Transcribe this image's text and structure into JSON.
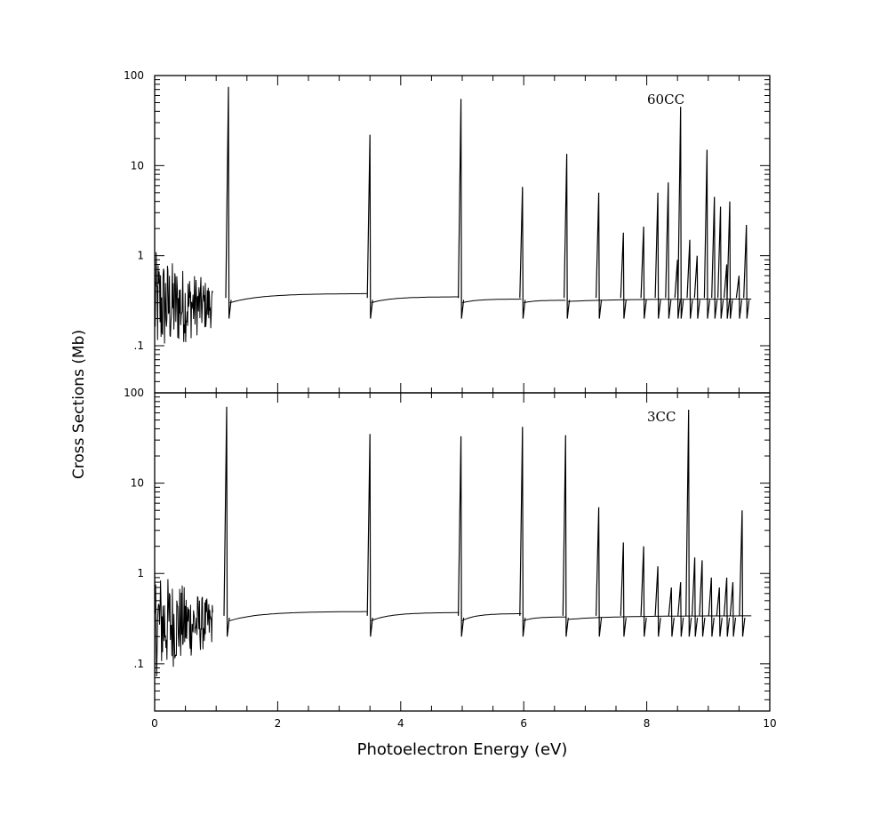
{
  "chart_data": {
    "type": "line",
    "xlabel": "Photoelectron Energy (eV)",
    "ylabel": "Cross Sections (Mb)",
    "xlim": [
      0,
      10
    ],
    "x_ticks": [
      "0",
      "2",
      "4",
      "6",
      "8",
      "10"
    ],
    "yscale": "log",
    "ylim": [
      0.03,
      100
    ],
    "y_ticks": [
      {
        "value": 100,
        "label": "100"
      },
      {
        "value": 10,
        "label": "10"
      },
      {
        "value": 1,
        "label": "1"
      },
      {
        "value": 0.1,
        "label": ".1"
      }
    ],
    "grid": false,
    "panels": [
      {
        "annotation": "60CC",
        "background": {
          "low_energy_region": {
            "x": [
              0,
              0.95
            ],
            "level": 0.28
          },
          "plateaus": [
            {
              "x": [
                1.22,
                3.45
              ],
              "start": 0.3,
              "end": 0.38
            },
            {
              "x": [
                3.52,
                4.95
              ],
              "start": 0.3,
              "end": 0.35
            },
            {
              "x": [
                5.0,
                5.96
              ],
              "start": 0.3,
              "end": 0.33
            },
            {
              "x": [
                6.0,
                6.68
              ],
              "start": 0.3,
              "end": 0.32
            },
            {
              "x": [
                6.72,
                9.7
              ],
              "start": 0.31,
              "end": 0.33
            }
          ]
        },
        "peaks": [
          {
            "x": 1.2,
            "y": 75
          },
          {
            "x": 3.5,
            "y": 22
          },
          {
            "x": 4.98,
            "y": 55
          },
          {
            "x": 5.98,
            "y": 5.8
          },
          {
            "x": 6.7,
            "y": 13.5
          },
          {
            "x": 7.22,
            "y": 5.0
          },
          {
            "x": 7.62,
            "y": 1.8
          },
          {
            "x": 7.95,
            "y": 2.1
          },
          {
            "x": 8.18,
            "y": 5.0
          },
          {
            "x": 8.35,
            "y": 6.5
          },
          {
            "x": 8.5,
            "y": 0.9
          },
          {
            "x": 8.55,
            "y": 45
          },
          {
            "x": 8.7,
            "y": 1.5
          },
          {
            "x": 8.82,
            "y": 1.0
          },
          {
            "x": 8.98,
            "y": 15
          },
          {
            "x": 9.1,
            "y": 4.5
          },
          {
            "x": 9.2,
            "y": 3.5
          },
          {
            "x": 9.3,
            "y": 0.8
          },
          {
            "x": 9.35,
            "y": 4.0
          },
          {
            "x": 9.5,
            "y": 0.6
          },
          {
            "x": 9.62,
            "y": 2.2
          }
        ]
      },
      {
        "annotation": "3CC",
        "background": {
          "low_energy_region": {
            "x": [
              0,
              0.95
            ],
            "level": 0.28
          },
          "plateaus": [
            {
              "x": [
                1.22,
                3.45
              ],
              "start": 0.3,
              "end": 0.38
            },
            {
              "x": [
                3.52,
                4.95
              ],
              "start": 0.3,
              "end": 0.37
            },
            {
              "x": [
                5.0,
                5.96
              ],
              "start": 0.3,
              "end": 0.36
            },
            {
              "x": [
                6.0,
                6.68
              ],
              "start": 0.3,
              "end": 0.33
            },
            {
              "x": [
                6.72,
                9.7
              ],
              "start": 0.31,
              "end": 0.34
            }
          ]
        },
        "peaks": [
          {
            "x": 1.17,
            "y": 70
          },
          {
            "x": 3.5,
            "y": 35
          },
          {
            "x": 4.98,
            "y": 33
          },
          {
            "x": 5.98,
            "y": 42
          },
          {
            "x": 6.68,
            "y": 34
          },
          {
            "x": 7.22,
            "y": 5.4
          },
          {
            "x": 7.62,
            "y": 2.2
          },
          {
            "x": 7.95,
            "y": 2.0
          },
          {
            "x": 8.18,
            "y": 1.2
          },
          {
            "x": 8.4,
            "y": 0.7
          },
          {
            "x": 8.55,
            "y": 0.8
          },
          {
            "x": 8.68,
            "y": 65
          },
          {
            "x": 8.78,
            "y": 1.5
          },
          {
            "x": 8.9,
            "y": 1.4
          },
          {
            "x": 9.05,
            "y": 0.9
          },
          {
            "x": 9.18,
            "y": 0.7
          },
          {
            "x": 9.3,
            "y": 0.9
          },
          {
            "x": 9.4,
            "y": 0.8
          },
          {
            "x": 9.55,
            "y": 5.0
          }
        ]
      }
    ]
  }
}
